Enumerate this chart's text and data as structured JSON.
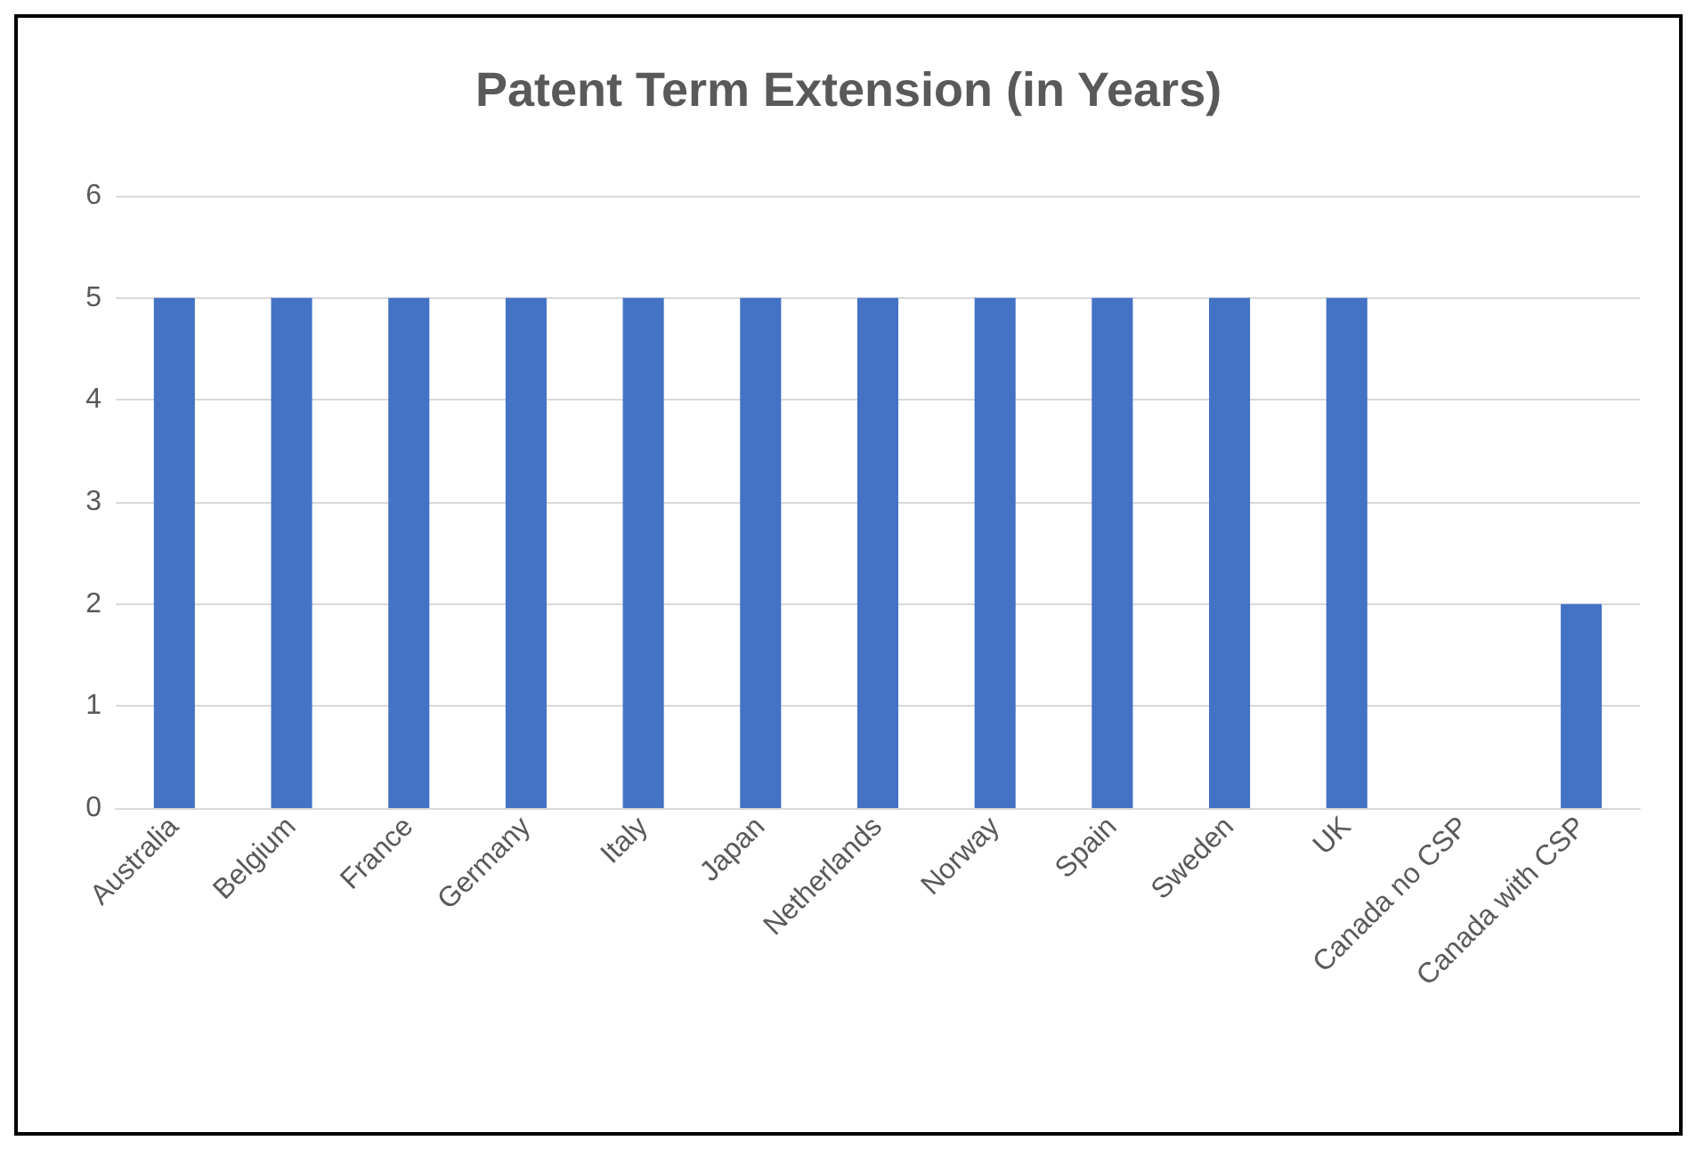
{
  "chart_data": {
    "type": "bar",
    "title": "Patent Term Extension (in Years)",
    "categories": [
      "Australia",
      "Belgium",
      "France",
      "Germany",
      "Italy",
      "Japan",
      "Netherlands",
      "Norway",
      "Spain",
      "Sweden",
      "UK",
      "Canada no CSP",
      "Canada with CSP"
    ],
    "values": [
      5,
      5,
      5,
      5,
      5,
      5,
      5,
      5,
      5,
      5,
      5,
      0,
      2
    ],
    "color": "#4472c4",
    "ylim": [
      0,
      6
    ],
    "yticks": [
      0,
      1,
      2,
      3,
      4,
      5,
      6
    ],
    "grid": "y"
  }
}
